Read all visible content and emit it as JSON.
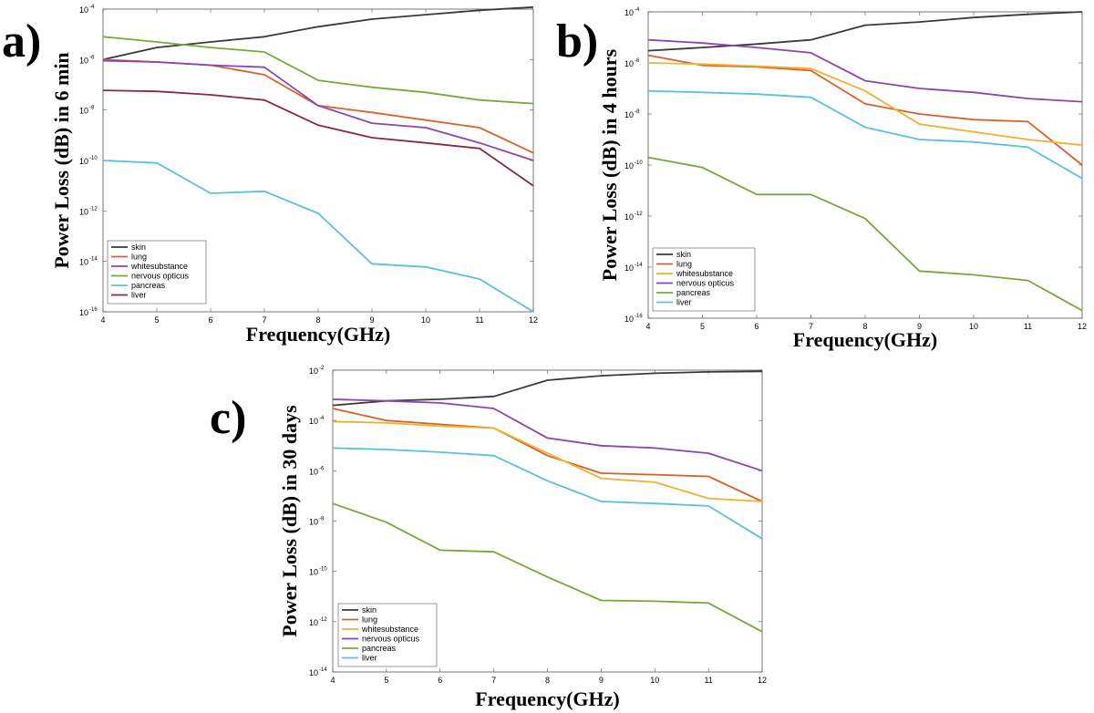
{
  "chart_data": [
    {
      "type": "line",
      "panel_label": "a)",
      "xlabel": "Frequency(GHz)",
      "ylabel": "Power Loss (dB) in 6 min",
      "yscale": "log",
      "x": [
        4,
        5,
        6,
        7,
        8,
        9,
        10,
        11,
        12
      ],
      "xlim": [
        4,
        12
      ],
      "ylim_exp": [
        -16,
        -4
      ],
      "x_ticks": [
        "4",
        "5",
        "6",
        "7",
        "8",
        "9",
        "10",
        "11",
        "12"
      ],
      "y_tick_exponents": [
        "-16",
        "-14",
        "-12",
        "-10",
        "-8",
        "-6",
        "-4"
      ],
      "y_tick_base": "10",
      "grid": false,
      "legend_position": "lower-left",
      "series": [
        {
          "name": "skin",
          "color": "#3a3a3a",
          "values": [
            1e-06,
            3e-06,
            5e-06,
            8e-06,
            2e-05,
            4e-05,
            6e-05,
            9e-05,
            0.00012
          ]
        },
        {
          "name": "lung",
          "color": "#d9622b",
          "values": [
            1e-06,
            8e-07,
            6e-07,
            2.5e-07,
            1.5e-08,
            8e-09,
            4e-09,
            2e-09,
            2e-10
          ]
        },
        {
          "name": " whitesubstance",
          "color": "#8e44ad",
          "values": [
            9e-07,
            8e-07,
            6e-07,
            5e-07,
            1.5e-08,
            3e-09,
            2e-09,
            5e-10,
            1e-10
          ]
        },
        {
          "name": "nervous opticus",
          "color": "#7aa73a",
          "values": [
            8e-06,
            5e-06,
            3e-06,
            2e-06,
            1.5e-07,
            8e-08,
            5e-08,
            2.5e-08,
            1.8e-08
          ]
        },
        {
          "name": "pancreas",
          "color": "#5bc0de",
          "values": [
            1e-10,
            8e-11,
            5e-12,
            6e-12,
            8e-13,
            8e-15,
            6e-15,
            2e-15,
            1e-16
          ]
        },
        {
          "name": "liver",
          "color": "#8b2a3f",
          "values": [
            6e-08,
            5.5e-08,
            4e-08,
            2.5e-08,
            2.5e-09,
            8e-10,
            5e-10,
            3e-10,
            1e-11
          ]
        }
      ]
    },
    {
      "type": "line",
      "panel_label": "b)",
      "xlabel": "Frequency(GHz)",
      "ylabel": "Power Loss (dB) in 4 hours",
      "yscale": "log",
      "x": [
        4,
        5,
        6,
        7,
        8,
        9,
        10,
        11,
        12
      ],
      "xlim": [
        4,
        12
      ],
      "ylim_exp": [
        -16,
        -4
      ],
      "x_ticks": [
        "4",
        "5",
        "6",
        "7",
        "8",
        "9",
        "10",
        "11",
        "12"
      ],
      "y_tick_exponents": [
        "-16",
        "-14",
        "-12",
        "-10",
        "-8",
        "-6",
        "-4"
      ],
      "y_tick_base": "10",
      "grid": false,
      "legend_position": "lower-left",
      "series": [
        {
          "name": "skin",
          "color": "#3a3a3a",
          "values": [
            3e-06,
            4e-06,
            5.5e-06,
            8e-06,
            3e-05,
            4e-05,
            6e-05,
            8e-05,
            0.0001
          ]
        },
        {
          "name": "lung",
          "color": "#d9622b",
          "values": [
            2e-06,
            8e-07,
            7e-07,
            5e-07,
            2.5e-08,
            1e-08,
            6e-09,
            5e-09,
            1e-10
          ]
        },
        {
          "name": " whitesubstance",
          "color": "#f0b030",
          "values": [
            1e-06,
            9e-07,
            7.5e-07,
            6e-07,
            8e-08,
            4e-09,
            2e-09,
            1e-09,
            6e-10
          ]
        },
        {
          "name": "nervous opticus",
          "color": "#8e44ad",
          "values": [
            8e-06,
            6e-06,
            4e-06,
            2.5e-06,
            2e-07,
            1e-07,
            7e-08,
            4e-08,
            3e-08
          ]
        },
        {
          "name": "pancreas",
          "color": "#7aa73a",
          "values": [
            2e-10,
            8e-11,
            7e-12,
            7e-12,
            8e-13,
            7e-15,
            5e-15,
            3e-15,
            2e-16
          ]
        },
        {
          "name": "liver",
          "color": "#5bc0de",
          "values": [
            8e-08,
            7e-08,
            6e-08,
            4.5e-08,
            3e-09,
            1e-09,
            8e-10,
            5e-10,
            3e-11
          ]
        }
      ]
    },
    {
      "type": "line",
      "panel_label": "c)",
      "xlabel": "Frequency(GHz)",
      "ylabel": "Power Loss (dB) in 30 days",
      "yscale": "log",
      "x": [
        4,
        5,
        6,
        7,
        8,
        9,
        10,
        11,
        12
      ],
      "xlim": [
        4,
        12
      ],
      "ylim_exp": [
        -14,
        -2
      ],
      "x_ticks": [
        "4",
        "5",
        "6",
        "7",
        "8",
        "9",
        "10",
        "11",
        "12"
      ],
      "y_tick_exponents": [
        "-14",
        "-12",
        "-10",
        "-8",
        "-6",
        "-4",
        "-2"
      ],
      "y_tick_base": "10",
      "grid": false,
      "legend_position": "lower-left",
      "series": [
        {
          "name": "skin",
          "color": "#3a3a3a",
          "values": [
            0.0004,
            0.0006,
            0.0007,
            0.0009,
            0.004,
            0.006,
            0.0075,
            0.0085,
            0.009
          ]
        },
        {
          "name": "lung",
          "color": "#d9622b",
          "values": [
            0.0003,
            0.0001,
            7e-05,
            5e-05,
            4e-06,
            8e-07,
            7e-07,
            6e-07,
            6e-08
          ]
        },
        {
          "name": " whitesubstance",
          "color": "#f0b030",
          "values": [
            9e-05,
            8e-05,
            6e-05,
            5e-05,
            5e-06,
            5e-07,
            3.5e-07,
            8e-08,
            6e-08
          ]
        },
        {
          "name": "nervous opticus",
          "color": "#8e44ad",
          "values": [
            0.0007,
            0.0006,
            0.0005,
            0.0003,
            2e-05,
            1e-05,
            8e-06,
            5e-06,
            1e-06
          ]
        },
        {
          "name": "pancreas",
          "color": "#7aa73a",
          "values": [
            5e-08,
            9e-09,
            7e-10,
            6e-10,
            6e-11,
            7e-12,
            6.5e-12,
            5.5e-12,
            4e-13
          ]
        },
        {
          "name": "liver",
          "color": "#5bc0de",
          "values": [
            8e-06,
            7e-06,
            5.5e-06,
            4e-06,
            4e-07,
            6e-08,
            5e-08,
            4e-08,
            2e-09
          ]
        }
      ]
    }
  ]
}
